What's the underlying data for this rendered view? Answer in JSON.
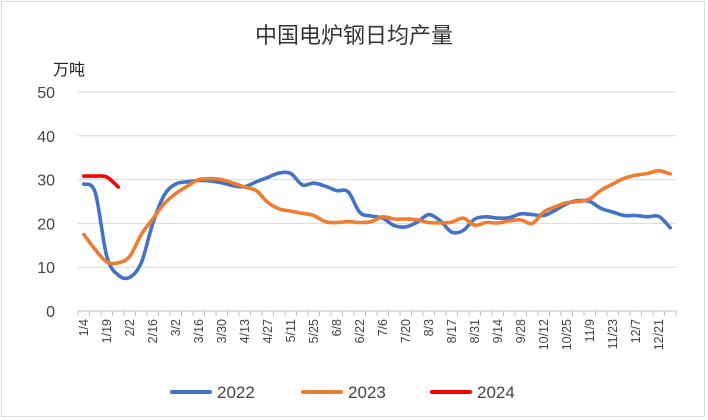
{
  "chart_data": {
    "type": "line",
    "title": "中国电炉钢日均产量",
    "ylabel": "万吨",
    "ylim": [
      0,
      50
    ],
    "yticks": [
      0,
      10,
      20,
      30,
      40,
      50
    ],
    "grid": true,
    "legend_position": "bottom",
    "x": [
      "1/4",
      "1/19",
      "2/2",
      "2/16",
      "3/2",
      "3/16",
      "3/30",
      "4/13",
      "4/27",
      "5/11",
      "5/25",
      "6/8",
      "6/22",
      "7/6",
      "7/20",
      "8/3",
      "8/17",
      "8/31",
      "9/14",
      "9/28",
      "10/12",
      "10/25",
      "11/9",
      "11/23",
      "12/7",
      "12/21"
    ],
    "series": [
      {
        "name": "2022",
        "color": "#4472C4",
        "points": [
          [
            "1/4",
            29
          ],
          [
            null,
            27
          ],
          [
            "1/19",
            12.5
          ],
          [
            null,
            8.2
          ],
          [
            "2/2",
            7.7
          ],
          [
            null,
            11
          ],
          [
            "2/16",
            20
          ],
          [
            null,
            26.5
          ],
          [
            "3/2",
            29
          ],
          [
            null,
            29.5
          ],
          [
            "3/16",
            29.8
          ],
          [
            null,
            29.7
          ],
          [
            "3/30",
            29.3
          ],
          [
            null,
            28.6
          ],
          [
            "4/13",
            28.4
          ],
          [
            null,
            29.5
          ],
          [
            "4/27",
            30.5
          ],
          [
            null,
            31.5
          ],
          [
            "5/11",
            31.4
          ],
          [
            null,
            28.8
          ],
          [
            "5/25",
            29.2
          ],
          [
            null,
            28.5
          ],
          [
            "6/8",
            27.5
          ],
          [
            null,
            27.2
          ],
          [
            "6/22",
            22.5
          ],
          [
            null,
            21.7
          ],
          [
            "7/6",
            21.2
          ],
          [
            null,
            19.5
          ],
          [
            "7/20",
            19.2
          ],
          [
            null,
            20.3
          ],
          [
            "8/3",
            22
          ],
          [
            null,
            20.6
          ],
          [
            "8/17",
            18
          ],
          [
            null,
            18.4
          ],
          [
            "8/31",
            21
          ],
          [
            null,
            21.5
          ],
          [
            "9/14",
            21.2
          ],
          [
            null,
            21.3
          ],
          [
            "9/28",
            22.2
          ],
          [
            null,
            22.0
          ],
          [
            "10/12",
            21.8
          ],
          [
            null,
            23.0
          ],
          [
            "10/25",
            24.5
          ],
          [
            null,
            25.2
          ],
          [
            "11/9",
            25.0
          ],
          [
            null,
            23.4
          ],
          [
            "11/23",
            22.6
          ],
          [
            null,
            21.8
          ],
          [
            "12/7",
            21.8
          ],
          [
            null,
            21.5
          ],
          [
            "12/21",
            21.6
          ],
          [
            null,
            19.0
          ]
        ]
      },
      {
        "name": "2023",
        "color": "#ED7D31",
        "points": [
          [
            "1/4",
            17.5
          ],
          [
            null,
            14
          ],
          [
            "1/19",
            11.2
          ],
          [
            null,
            11
          ],
          [
            "2/2",
            12.5
          ],
          [
            null,
            17.5
          ],
          [
            "2/16",
            21
          ],
          [
            null,
            24.5
          ],
          [
            "3/2",
            26.8
          ],
          [
            null,
            28.5
          ],
          [
            "3/16",
            30
          ],
          [
            null,
            30.2
          ],
          [
            "3/30",
            30
          ],
          [
            null,
            29.2
          ],
          [
            "4/13",
            28.3
          ],
          [
            null,
            27.5
          ],
          [
            "4/27",
            24.8
          ],
          [
            null,
            23.3
          ],
          [
            "5/11",
            22.8
          ],
          [
            null,
            22.3
          ],
          [
            "5/25",
            21.8
          ],
          [
            null,
            20.4
          ],
          [
            "6/8",
            20.2
          ],
          [
            null,
            20.4
          ],
          [
            "6/22",
            20.2
          ],
          [
            null,
            20.4
          ],
          [
            "7/6",
            21.5
          ],
          [
            null,
            21.0
          ],
          [
            "7/20",
            21.0
          ],
          [
            null,
            20.8
          ],
          [
            "8/3",
            20.2
          ],
          [
            null,
            20.1
          ],
          [
            "8/17",
            20.3
          ],
          [
            null,
            21.2
          ],
          [
            "8/31",
            19.6
          ],
          [
            null,
            20.2
          ],
          [
            "9/14",
            20.1
          ],
          [
            null,
            20.6
          ],
          [
            "9/28",
            20.8
          ],
          [
            null,
            20.0
          ],
          [
            "10/12",
            22.6
          ],
          [
            null,
            23.8
          ],
          [
            "10/25",
            24.7
          ],
          [
            null,
            25.0
          ],
          [
            "11/9",
            25.6
          ],
          [
            null,
            27.6
          ],
          [
            "11/23",
            29.0
          ],
          [
            null,
            30.3
          ],
          [
            "12/7",
            31.0
          ],
          [
            null,
            31.4
          ],
          [
            "12/21",
            32.0
          ],
          [
            null,
            31.3
          ]
        ]
      },
      {
        "name": "2024",
        "color": "#FF0000",
        "points": [
          [
            "1/4",
            30.8
          ],
          [
            null,
            30.8
          ],
          [
            "1/19",
            30.6
          ],
          [
            null,
            28.3
          ]
        ]
      }
    ]
  }
}
